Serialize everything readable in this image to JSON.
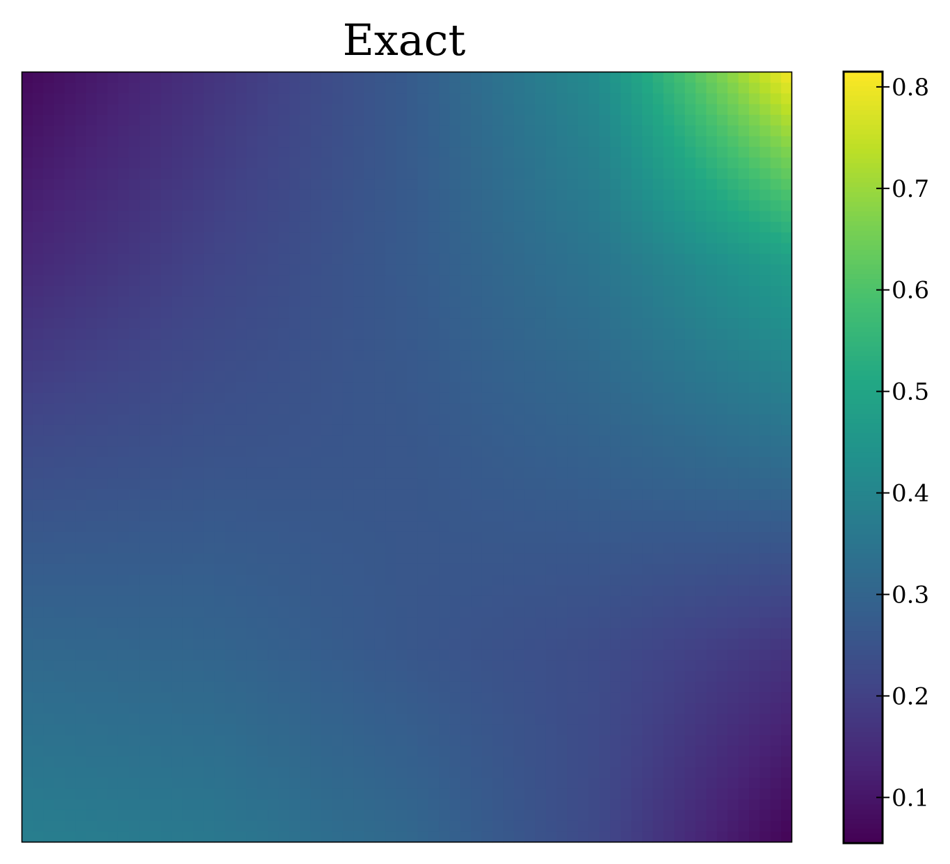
{
  "chart_data": {
    "type": "heatmap",
    "title": "Exact",
    "xlabel": "",
    "ylabel": "",
    "show_axis_ticks": false,
    "grid": false,
    "colormap": "viridis",
    "color_range": [
      0.055,
      0.815
    ],
    "colorbar": {
      "placement": "right",
      "ticks": [
        0.1,
        0.2,
        0.3,
        0.4,
        0.5,
        0.6,
        0.7,
        0.8
      ],
      "tick_labels": [
        "0.1",
        "0.2",
        "0.3",
        "0.4",
        "0.5",
        "0.6",
        "0.7",
        "0.8"
      ]
    },
    "grid_shape": [
      5,
      5
    ],
    "grid_orientation": "row 0 = top of image, column 0 = left",
    "values": [
      [
        0.07,
        0.17,
        0.27,
        0.42,
        0.81
      ],
      [
        0.14,
        0.21,
        0.27,
        0.35,
        0.48
      ],
      [
        0.23,
        0.25,
        0.26,
        0.29,
        0.33
      ],
      [
        0.31,
        0.3,
        0.26,
        0.23,
        0.17
      ],
      [
        0.38,
        0.36,
        0.31,
        0.22,
        0.06
      ]
    ]
  }
}
